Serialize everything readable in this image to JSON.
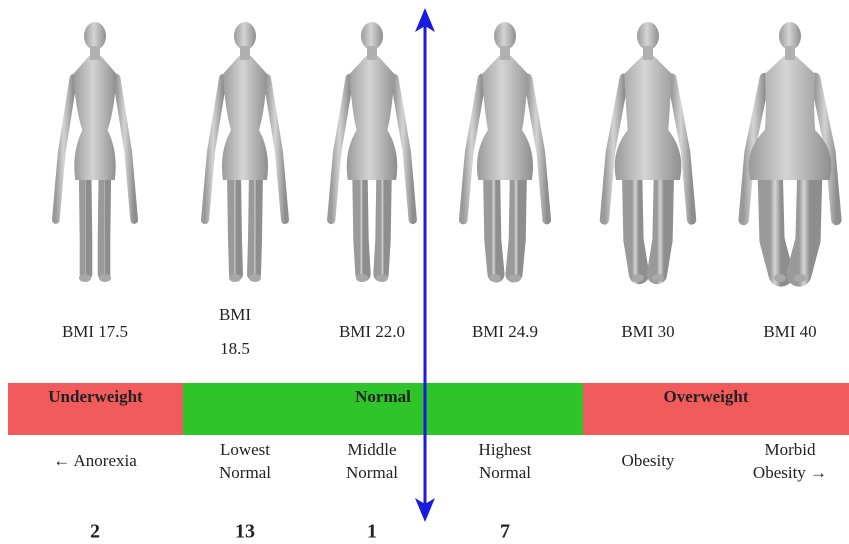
{
  "figures": [
    {
      "label": [
        "BMI 17.5"
      ]
    },
    {
      "label": [
        "BMI",
        "18.5"
      ]
    },
    {
      "label": [
        "BMI 22.0"
      ]
    },
    {
      "label": [
        "BMI 24.9"
      ]
    },
    {
      "label": [
        "BMI 30"
      ]
    },
    {
      "label": [
        "BMI 40"
      ]
    }
  ],
  "bands": [
    {
      "label": "Underweight",
      "color": "#f25b5b"
    },
    {
      "label": "Normal",
      "color": "#2ec42a"
    },
    {
      "label": "Overweight",
      "color": "#f25b5b"
    }
  ],
  "descriptions": [
    [
      "← Anorexia"
    ],
    [
      "Lowest",
      "Normal"
    ],
    [
      "Middle",
      "Normal"
    ],
    [
      "Highest",
      "Normal"
    ],
    [
      "Obesity"
    ],
    [
      "Morbid",
      "Obesity →"
    ]
  ],
  "counts": [
    2,
    13,
    1,
    7
  ]
}
